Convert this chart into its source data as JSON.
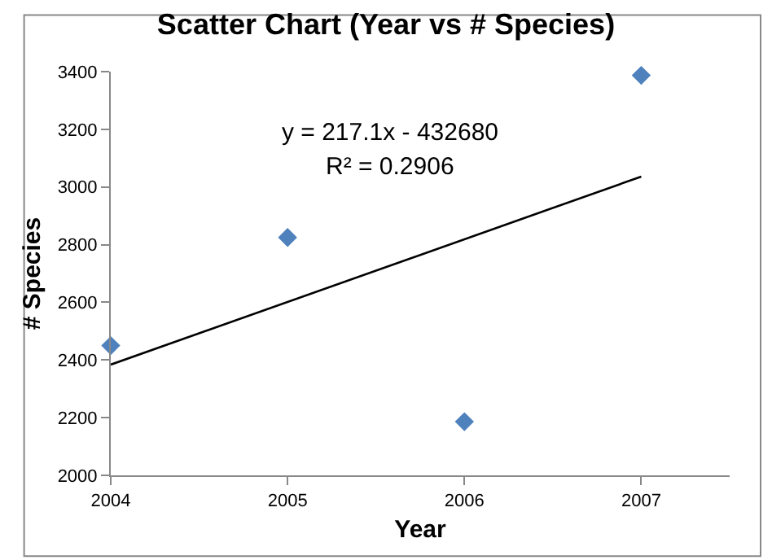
{
  "chart_data": {
    "type": "scatter",
    "title": "Scatter Chart (Year vs # Species)",
    "xlabel": "Year",
    "ylabel": "# Species",
    "x": [
      2004,
      2005,
      2006,
      2007
    ],
    "series": [
      {
        "color": "#4f81bd",
        "values": [
          2450,
          2825,
          2186,
          3387
        ],
        "marker": "diamond"
      },
      {
        "type": "line",
        "color": "#000000",
        "x": [
          2004,
          2007
        ],
        "values": [
          2384,
          3036
        ],
        "marker": "none",
        "line_style": "solid"
      }
    ],
    "annotations": [
      "y = 217.1x - 432680",
      "R² = 0.2906"
    ],
    "xlim": [
      2004,
      2007.5
    ],
    "xticks": [
      2004,
      2005,
      2006,
      2007
    ],
    "ylim": [
      2000,
      3400
    ],
    "yticks": [
      2000,
      2200,
      2400,
      2600,
      2800,
      3000,
      3200,
      3400
    ]
  }
}
